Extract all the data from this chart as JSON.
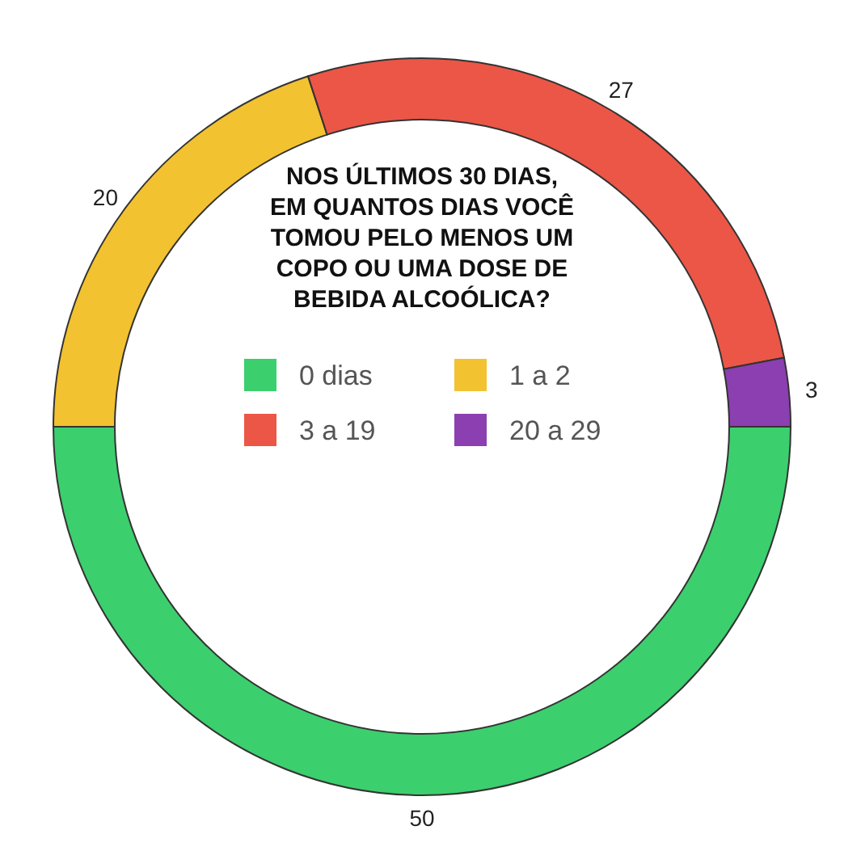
{
  "chart_data": {
    "type": "donut",
    "title": "NOS ÚLTIMOS 30 DIAS, EM QUANTOS DIAS VOCÊ TOMOU PELO MENOS UM COPO OU UMA DOSE DE BEBIDA ALCOÓLICA?",
    "categories": [
      "0 dias",
      "1 a 2",
      "3 a 19",
      "20 a 29"
    ],
    "values": [
      50,
      20,
      27,
      3
    ],
    "colors": [
      "#3ccf6e",
      "#f2c230",
      "#ec5647",
      "#8c3fb0"
    ],
    "data_labels": true,
    "legend": "center"
  }
}
